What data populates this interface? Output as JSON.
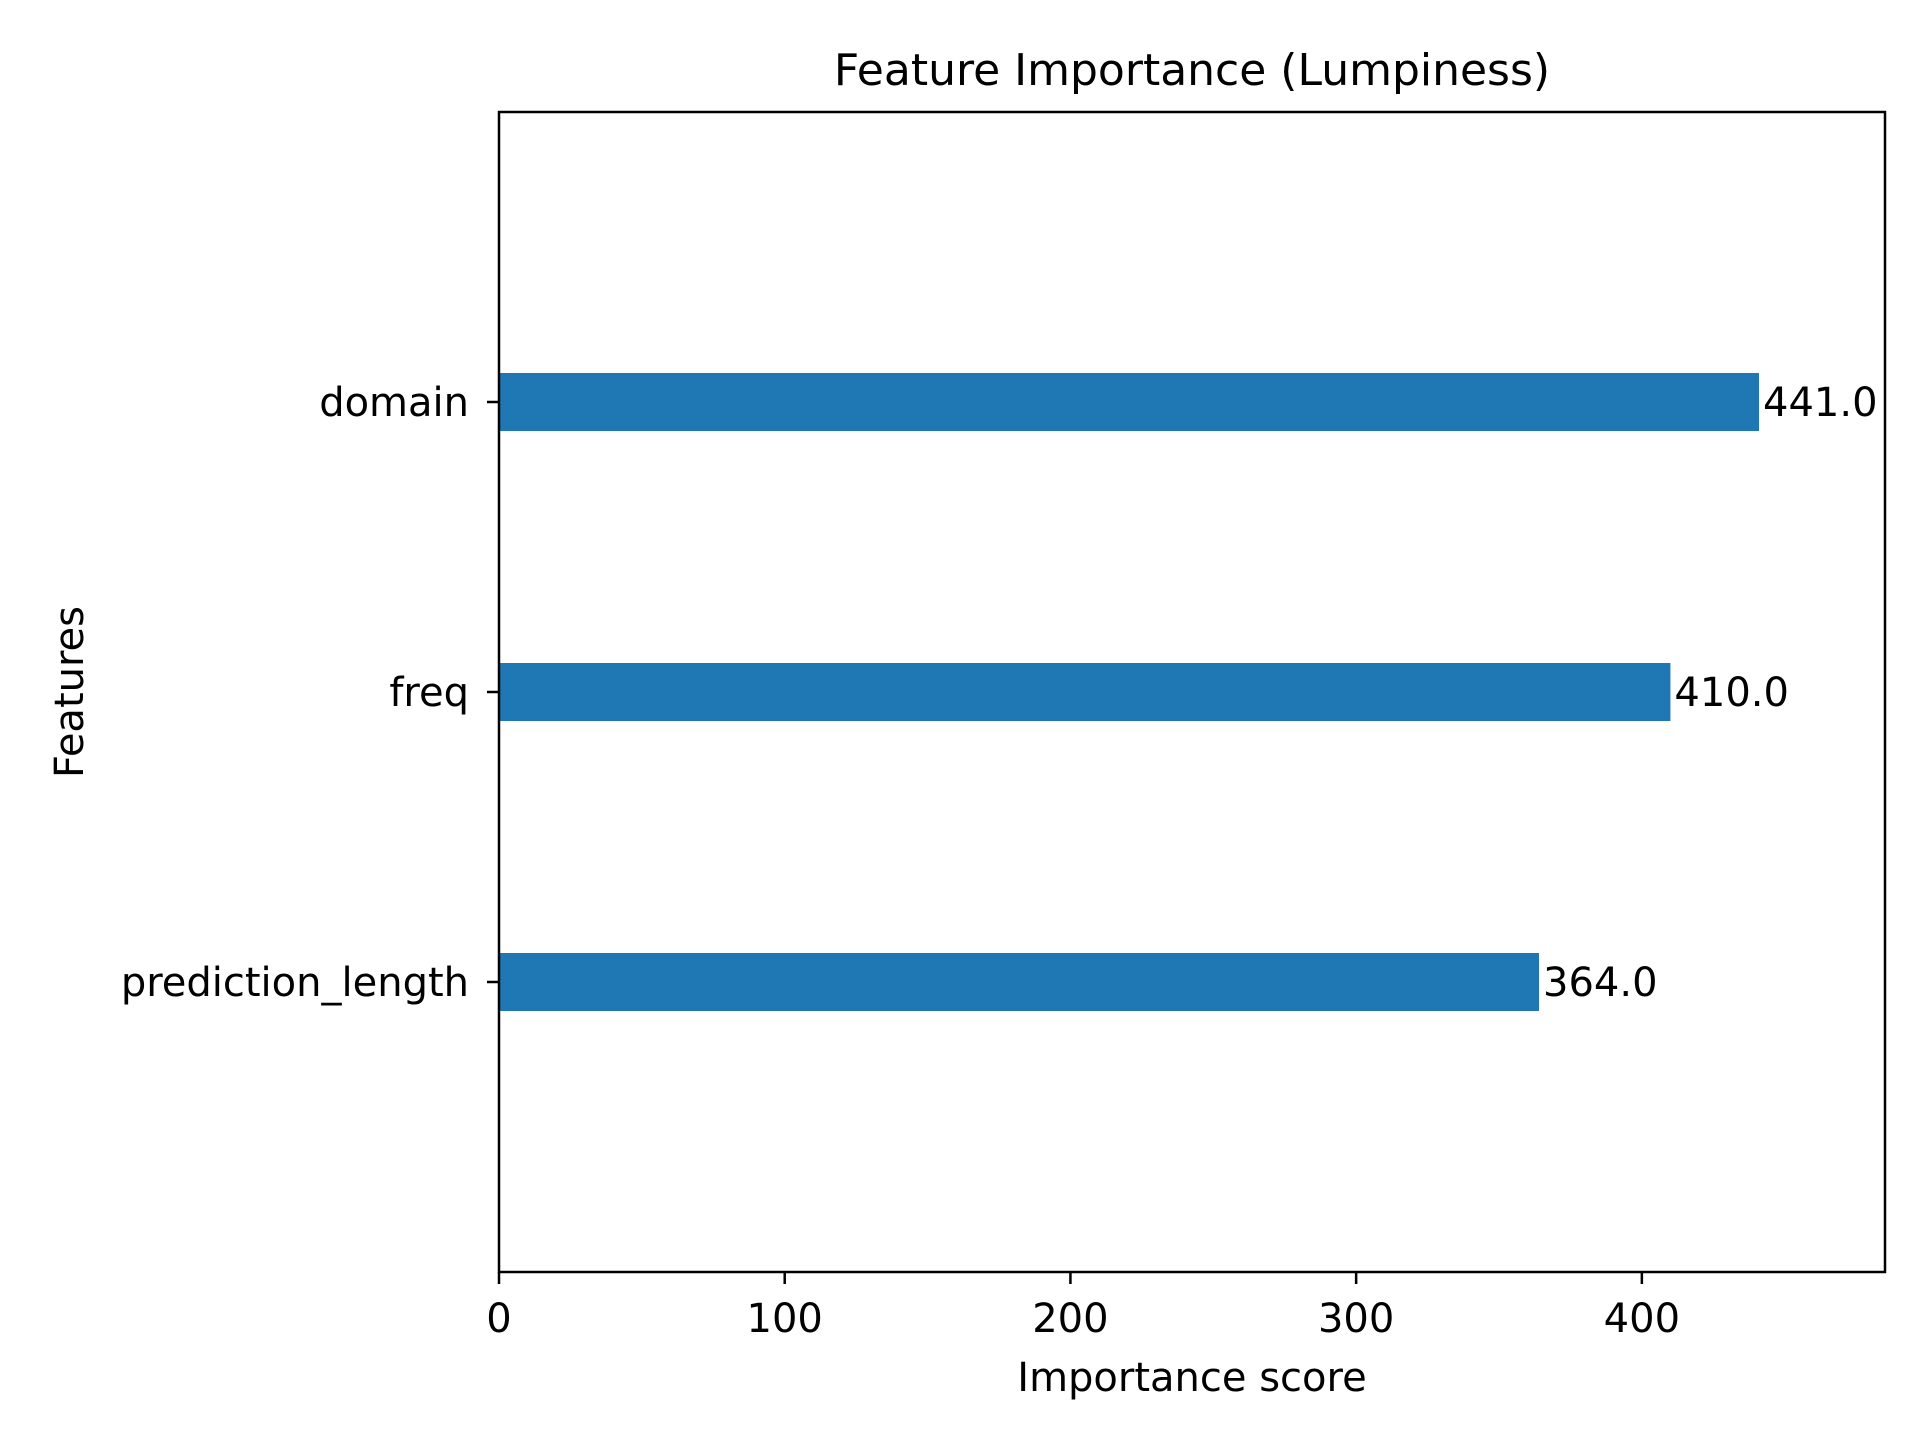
{
  "chart_data": {
    "type": "bar",
    "orientation": "horizontal",
    "title": "Feature Importance (Lumpiness)",
    "xlabel": "Importance score",
    "ylabel": "Features",
    "categories": [
      "domain",
      "freq",
      "prediction_length"
    ],
    "values": [
      441.0,
      410.0,
      364.0
    ],
    "value_labels": [
      "441.0",
      "410.0",
      "364.0"
    ],
    "xlim": [
      0,
      485.1
    ],
    "xticks": [
      0,
      100,
      200,
      300,
      400
    ],
    "xtick_labels": [
      "0",
      "100",
      "200",
      "300",
      "400"
    ],
    "grid": false,
    "legend": "none",
    "bar_color": "#1f77b4",
    "axis_color": "#000000",
    "background": "#ffffff"
  }
}
